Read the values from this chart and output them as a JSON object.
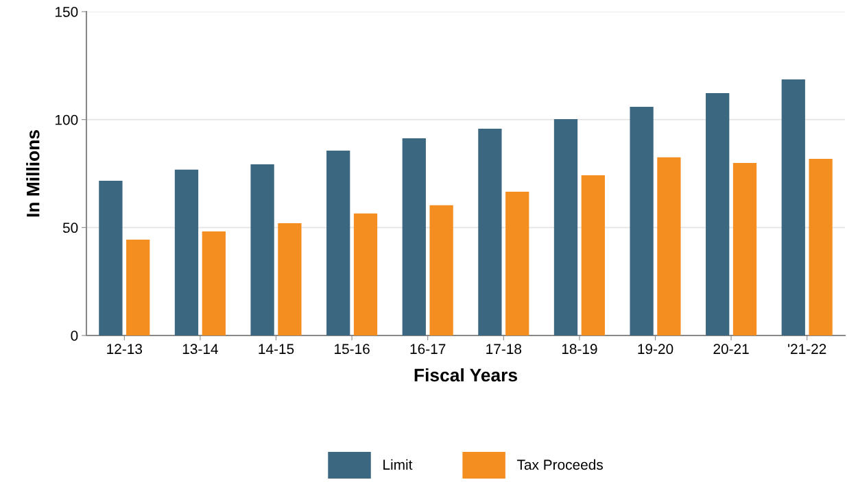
{
  "chart_data": {
    "type": "bar",
    "xlabel": "Fiscal Years",
    "ylabel": "In Millions",
    "categories": [
      "12-13",
      "13-14",
      "14-15",
      "15-16",
      "16-17",
      "17-18",
      "18-19",
      "19-20",
      "20-21",
      "'21-22"
    ],
    "series": [
      {
        "name": "Limit",
        "color": "#3c6780",
        "values": [
          71.7,
          76.8,
          79.3,
          85.6,
          91.3,
          95.8,
          100.2,
          105.9,
          112.3,
          118.6
        ]
      },
      {
        "name": "Tax Proceeds",
        "color": "#f48e21",
        "values": [
          44.4,
          48.2,
          52.0,
          56.5,
          60.3,
          66.6,
          74.2,
          82.5,
          79.9,
          81.8
        ]
      }
    ],
    "ylim": [
      0,
      150
    ],
    "yticks": [
      0,
      50,
      100,
      150
    ],
    "grid": "y",
    "legend": "bottom"
  }
}
